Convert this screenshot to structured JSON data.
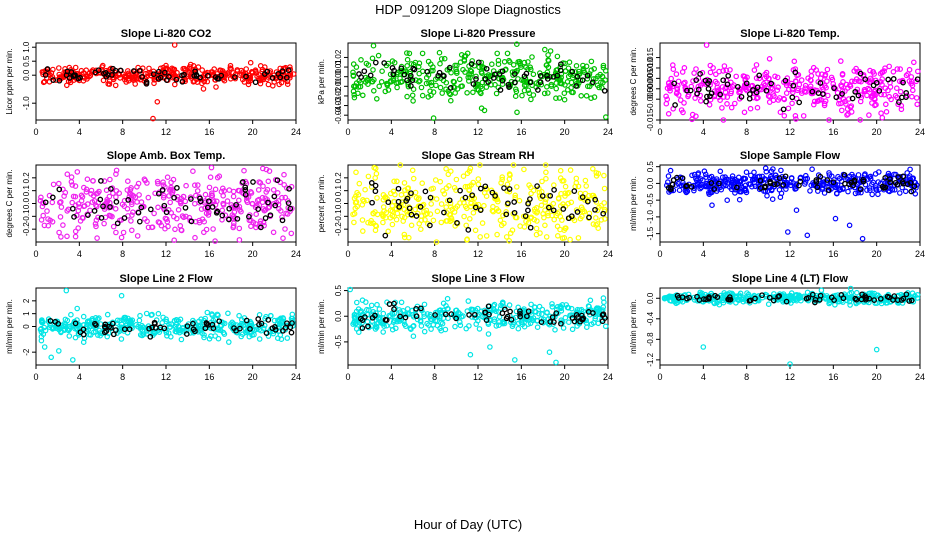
{
  "figure": {
    "title": "HDP_091209  Slope Diagnostics",
    "xlabel": "Hour of Day (UTC)"
  },
  "chart_data": [
    {
      "type": "scatter",
      "title": "Slope Li-820 CO2",
      "ylabel": "Licor ppm per min.",
      "color": "#ff0000",
      "xlim": [
        0,
        24
      ],
      "xticks": [
        0,
        4,
        8,
        12,
        16,
        20,
        24
      ],
      "ylim": [
        -1.6,
        1.15
      ],
      "yticks": [
        "-1.0",
        "0.0",
        "0.5",
        "1.0"
      ],
      "ytick_values": [
        -1.0,
        0.0,
        0.5,
        1.0
      ],
      "spread": 0.16,
      "outliers": [
        [
          10.8,
          -1.55
        ],
        [
          11.2,
          -0.95
        ],
        [
          12.8,
          1.08
        ]
      ]
    },
    {
      "type": "scatter",
      "title": "Slope Li-820 Pressure",
      "ylabel": "kPa per min.",
      "color": "#00c000",
      "xlim": [
        0,
        24
      ],
      "xticks": [
        0,
        4,
        8,
        12,
        16,
        20,
        24
      ],
      "ylim": [
        -0.045,
        0.035
      ],
      "yticks": [
        "-0.04",
        "-0.03",
        "-0.02",
        "-0.01",
        "0.00",
        "0.01",
        "0.02"
      ],
      "ytick_values": [
        -0.04,
        -0.03,
        -0.02,
        -0.01,
        0.0,
        0.01,
        0.02
      ],
      "spread": 0.011,
      "outliers": [
        [
          7.9,
          -0.043
        ],
        [
          23.8,
          -0.042
        ],
        [
          12.6,
          -0.035
        ],
        [
          15.6,
          -0.037
        ]
      ]
    },
    {
      "type": "scatter",
      "title": "Slope Li-820 Temp.",
      "ylabel": "degrees C per min.",
      "color": "#ff00ff",
      "xlim": [
        0,
        24
      ],
      "xticks": [
        0,
        4,
        8,
        12,
        16,
        20,
        24
      ],
      "ylim": [
        -0.015,
        0.022
      ],
      "yticks": [
        "-0.015",
        "-0.005",
        "0.000",
        "0.005",
        "0.010",
        "0.015"
      ],
      "ytick_values": [
        -0.015,
        -0.005,
        0.0,
        0.005,
        0.01,
        0.015
      ],
      "spread": 0.006,
      "outliers": [
        [
          4.3,
          0.021
        ],
        [
          0.8,
          -0.012
        ],
        [
          12.5,
          -0.013
        ]
      ]
    },
    {
      "type": "scatter",
      "title": "Slope Amb. Box Temp.",
      "ylabel": "degrees C per min.",
      "color": "#ee22ee",
      "xlim": [
        0,
        24
      ],
      "xticks": [
        0,
        4,
        8,
        12,
        16,
        20,
        24
      ],
      "ylim": [
        -0.3,
        0.3
      ],
      "yticks": [
        "-0.2",
        "-0.1",
        "0.0",
        "0.1",
        "0.2"
      ],
      "ytick_values": [
        -0.2,
        -0.1,
        0.0,
        0.1,
        0.2
      ],
      "spread": 0.12,
      "outliers": [
        [
          16.2,
          0.28
        ],
        [
          22.8,
          -0.27
        ],
        [
          2.3,
          -0.26
        ]
      ]
    },
    {
      "type": "scatter",
      "title": "Slope Gas Stream RH",
      "ylabel": "percent per min.",
      "color": "#ffff00",
      "xlim": [
        0,
        24
      ],
      "xticks": [
        0,
        4,
        8,
        12,
        16,
        20,
        24
      ],
      "ylim": [
        -0.3,
        0.3
      ],
      "yticks": [
        "-0.2",
        "-0.1",
        "0.0",
        "0.1",
        "0.2"
      ],
      "ytick_values": [
        -0.2,
        -0.1,
        0.0,
        0.1,
        0.2
      ],
      "spread": 0.14,
      "outliers": [
        [
          22.6,
          0.27
        ],
        [
          19.8,
          -0.27
        ],
        [
          12.2,
          -0.26
        ]
      ]
    },
    {
      "type": "scatter",
      "title": "Slope Sample Flow",
      "ylabel": "ml/min per min.",
      "color": "#0000ff",
      "xlim": [
        0,
        24
      ],
      "xticks": [
        0,
        4,
        8,
        12,
        16,
        20,
        24
      ],
      "ylim": [
        -1.75,
        0.55
      ],
      "yticks": [
        "-1.5",
        "-1.0",
        "-0.5",
        "0.0",
        "0.5"
      ],
      "ytick_values": [
        -1.5,
        -1.0,
        -0.5,
        0.0,
        0.5
      ],
      "spread": 0.17,
      "outliers": [
        [
          11.8,
          -1.45
        ],
        [
          13.6,
          -1.55
        ],
        [
          18.7,
          -1.65
        ],
        [
          16.2,
          -1.05
        ],
        [
          17.5,
          -1.25
        ],
        [
          4.8,
          -0.65
        ],
        [
          12.6,
          -0.8
        ],
        [
          6.2,
          -0.5
        ]
      ]
    },
    {
      "type": "scatter",
      "title": "Slope Line 2 Flow",
      "ylabel": "ml/min per min.",
      "color": "#00e5e5",
      "xlim": [
        0,
        24
      ],
      "xticks": [
        0,
        4,
        8,
        12,
        16,
        20,
        24
      ],
      "ylim": [
        -3.0,
        3.0
      ],
      "yticks": [
        "-2",
        "0",
        "1",
        "2"
      ],
      "ytick_values": [
        -2,
        0,
        1,
        2
      ],
      "spread": 0.45,
      "outliers": [
        [
          2.8,
          2.8
        ],
        [
          0.8,
          -1.6
        ],
        [
          1.4,
          -2.4
        ],
        [
          2.1,
          -1.9
        ],
        [
          3.4,
          -2.6
        ],
        [
          7.9,
          2.4
        ],
        [
          0.5,
          -1.1
        ],
        [
          3.8,
          1.4
        ]
      ]
    },
    {
      "type": "scatter",
      "title": "Slope Line 3 Flow",
      "ylabel": "ml/min per min.",
      "color": "#00e5e5",
      "xlim": [
        0,
        24
      ],
      "xticks": [
        0,
        4,
        8,
        12,
        16,
        20,
        24
      ],
      "ylim": [
        -0.95,
        0.55
      ],
      "yticks": [
        "-0.5",
        "0.0",
        "0.5"
      ],
      "ytick_values": [
        -0.5,
        0.0,
        0.5
      ],
      "spread": 0.13,
      "outliers": [
        [
          0.2,
          0.52
        ],
        [
          11.3,
          -0.75
        ],
        [
          15.4,
          -0.85
        ],
        [
          18.6,
          -0.7
        ],
        [
          13.1,
          -0.6
        ],
        [
          19.2,
          -0.9
        ]
      ]
    },
    {
      "type": "scatter",
      "title": "Slope Line 4 (LT) Flow",
      "ylabel": "ml/min per min.",
      "color": "#00e5e5",
      "xlim": [
        0,
        24
      ],
      "xticks": [
        0,
        4,
        8,
        12,
        16,
        20,
        24
      ],
      "ylim": [
        -1.3,
        0.2
      ],
      "yticks": [
        "-1.2",
        "-0.8",
        "-0.4",
        "0.0"
      ],
      "ytick_values": [
        -1.2,
        -0.8,
        -0.4,
        0.0
      ],
      "spread": 0.05,
      "outliers": [
        [
          4.0,
          -0.95
        ],
        [
          12.0,
          -1.28
        ],
        [
          20.0,
          -1.0
        ],
        [
          17.6,
          0.19
        ]
      ]
    }
  ]
}
